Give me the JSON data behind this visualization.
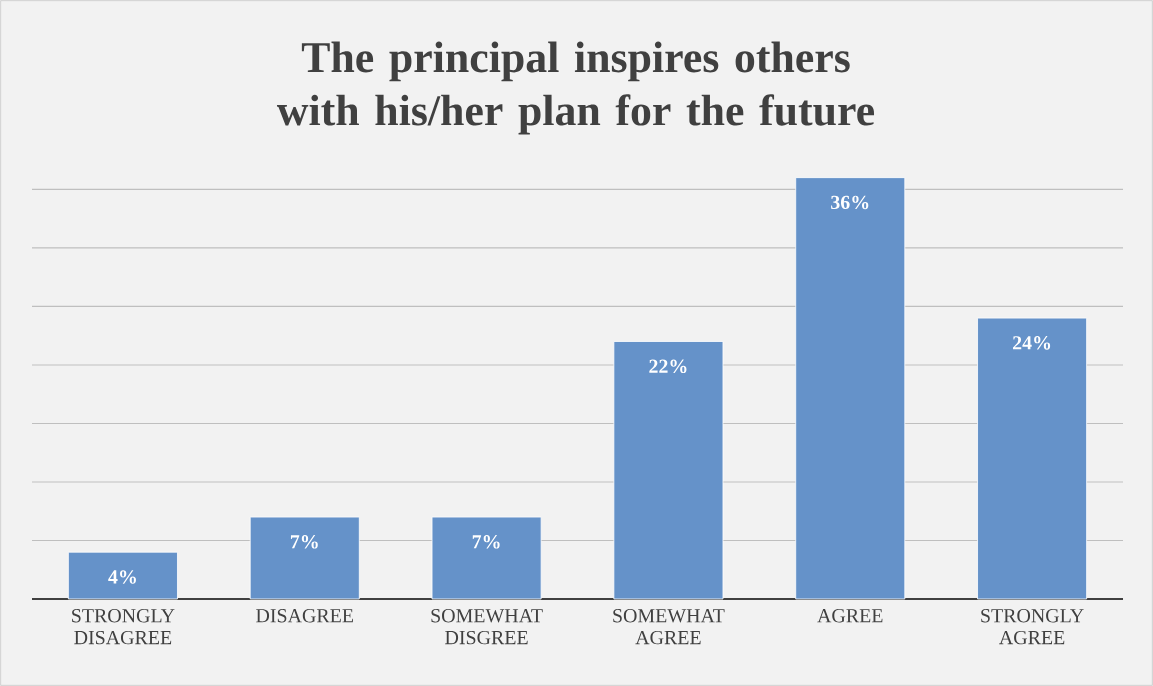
{
  "chart_data": {
    "type": "bar",
    "title": "The principal inspires others with his/her plan for the future",
    "categories": [
      "STRONGLY DISAGREE",
      "DISAGREE",
      "SOMEWHAT DISGREE",
      "SOMEWHAT AGREE",
      "AGREE",
      "STRONGLY AGREE"
    ],
    "values": [
      4,
      7,
      7,
      22,
      36,
      24
    ],
    "value_labels": [
      "4%",
      "7%",
      "7%",
      "22%",
      "36%",
      "24%"
    ],
    "color": "#6592c9",
    "yticks": [
      {
        "value": 0,
        "label": null
      },
      {
        "value": 5,
        "label": null
      },
      {
        "value": 10,
        "label": null
      },
      {
        "value": 15,
        "label": null
      },
      {
        "value": 20,
        "label": null
      },
      {
        "value": 25,
        "label": null
      },
      {
        "value": 30,
        "label": null
      },
      {
        "value": 35,
        "label": null
      }
    ],
    "grid": "y",
    "tick_labels": "x"
  }
}
